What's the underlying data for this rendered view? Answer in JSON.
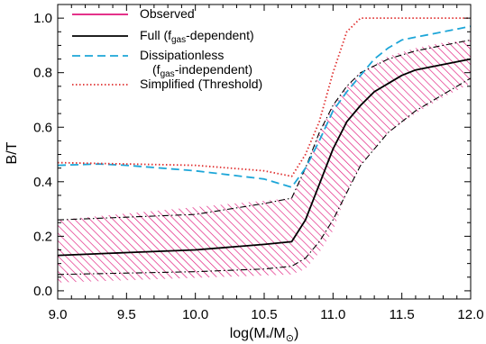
{
  "chart_data": {
    "type": "line",
    "xlabel": "log(M⁎/M⊙)",
    "ylabel": "B/T",
    "xlim": [
      9.0,
      12.0
    ],
    "ylim": [
      -0.03,
      1.05
    ],
    "xticks": [
      9.0,
      9.5,
      10.0,
      10.5,
      11.0,
      11.5,
      12.0
    ],
    "xtick_labels": [
      "9.0",
      "9.5",
      "10.0",
      "10.5",
      "11.0",
      "11.5",
      "12.0"
    ],
    "yticks": [
      0.0,
      0.2,
      0.4,
      0.6,
      0.8,
      1.0
    ],
    "ytick_labels": [
      "0.0",
      "0.2",
      "0.4",
      "0.6",
      "0.8",
      "1.0"
    ],
    "grid": false,
    "legend_position": "top-left",
    "observed_band": {
      "name": "Observed",
      "color": "#e0157a",
      "x": [
        9.0,
        10.7,
        10.8,
        10.9,
        11.0,
        11.1,
        11.2,
        11.4,
        11.6,
        11.8,
        12.0
      ],
      "upper": [
        0.26,
        0.34,
        0.45,
        0.58,
        0.68,
        0.75,
        0.8,
        0.86,
        0.89,
        0.91,
        0.92
      ],
      "lower": [
        0.03,
        0.06,
        0.08,
        0.14,
        0.22,
        0.36,
        0.46,
        0.58,
        0.65,
        0.71,
        0.76
      ]
    },
    "series": [
      {
        "name": "Full (f_gas-dependent)",
        "legend_label": "Full (f",
        "legend_sub": "gas",
        "legend_suffix": "-dependent)",
        "style": "solid",
        "color": "#000000",
        "x": [
          9.0,
          9.5,
          10.0,
          10.5,
          10.7,
          10.8,
          10.9,
          11.0,
          11.1,
          11.2,
          11.3,
          11.4,
          11.5,
          11.6,
          11.7,
          11.8,
          11.9,
          12.0
        ],
        "y": [
          0.13,
          0.14,
          0.15,
          0.17,
          0.18,
          0.26,
          0.39,
          0.52,
          0.62,
          0.68,
          0.73,
          0.76,
          0.79,
          0.81,
          0.82,
          0.83,
          0.84,
          0.85
        ]
      },
      {
        "name": "Full upper",
        "style": "dashdot",
        "color": "#000000",
        "x": [
          9.0,
          10.0,
          10.5,
          10.7,
          10.8,
          10.9,
          11.0,
          11.1,
          11.2,
          11.4,
          11.6,
          11.8,
          12.0
        ],
        "y": [
          0.26,
          0.28,
          0.32,
          0.34,
          0.45,
          0.58,
          0.68,
          0.75,
          0.8,
          0.85,
          0.88,
          0.9,
          0.92
        ]
      },
      {
        "name": "Full lower",
        "style": "dashdot",
        "color": "#000000",
        "x": [
          9.0,
          10.0,
          10.5,
          10.7,
          10.8,
          10.9,
          11.0,
          11.1,
          11.2,
          11.4,
          11.6,
          11.8,
          12.0
        ],
        "y": [
          0.06,
          0.07,
          0.08,
          0.09,
          0.12,
          0.18,
          0.26,
          0.36,
          0.46,
          0.58,
          0.66,
          0.72,
          0.78
        ]
      },
      {
        "name": "Dissipationless (f_gas-independent)",
        "legend_label": "Dissipationless",
        "legend_line2_prefix": "(f",
        "legend_sub": "gas",
        "legend_suffix": "-independent)",
        "style": "dashed",
        "color": "#1da6d8",
        "x": [
          9.0,
          9.3,
          9.5,
          10.0,
          10.5,
          10.7,
          10.8,
          10.9,
          11.0,
          11.1,
          11.2,
          11.3,
          11.4,
          11.5,
          11.6,
          11.7,
          11.8,
          11.9,
          12.0
        ],
        "y": [
          0.46,
          0.465,
          0.46,
          0.44,
          0.41,
          0.38,
          0.45,
          0.55,
          0.66,
          0.73,
          0.79,
          0.85,
          0.89,
          0.92,
          0.93,
          0.94,
          0.95,
          0.96,
          0.97
        ]
      },
      {
        "name": "Simplified (Threshold)",
        "style": "dotted",
        "color": "#e03030",
        "x": [
          9.0,
          9.5,
          10.0,
          10.5,
          10.7,
          10.8,
          10.9,
          11.0,
          11.1,
          11.2,
          12.0
        ],
        "y": [
          0.47,
          0.465,
          0.46,
          0.44,
          0.42,
          0.5,
          0.62,
          0.8,
          0.95,
          1.0,
          1.0
        ]
      }
    ],
    "legend": [
      {
        "label": "Observed",
        "color": "#e0157a",
        "style": "solid"
      },
      {
        "label": "Full (f",
        "sub": "gas",
        "suffix": "-dependent)",
        "color": "#000000",
        "style": "solid"
      },
      {
        "label": "Dissipationless",
        "line2_prefix": "(f",
        "sub": "gas",
        "suffix": "-independent)",
        "color": "#1da6d8",
        "style": "dashed"
      },
      {
        "label": "Simplified (Threshold)",
        "color": "#e03030",
        "style": "dotted"
      }
    ]
  }
}
